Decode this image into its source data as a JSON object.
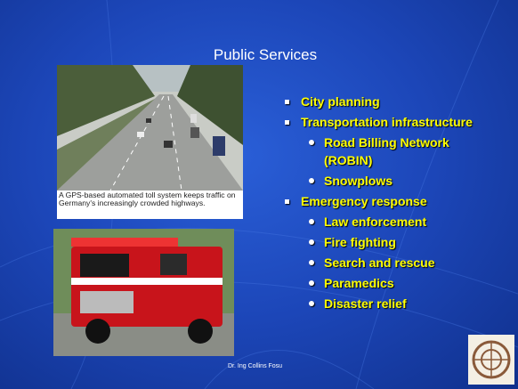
{
  "slide": {
    "title": "Public Services",
    "caption": "A GPS-based automated toll system keeps traffic on Germany's increasingly crowded highways.",
    "bullets": [
      {
        "text": "City planning"
      },
      {
        "text": "Transportation infrastructure",
        "sub": [
          "Road Billing Network (ROBIN)",
          "Snowplows"
        ]
      },
      {
        "text": "Emergency response",
        "sub": [
          "Law enforcement",
          "Fire fighting",
          "Search and rescue",
          "Paramedics",
          "Disaster relief"
        ]
      }
    ],
    "footer": "Dr. Ing Collins Fosu"
  }
}
